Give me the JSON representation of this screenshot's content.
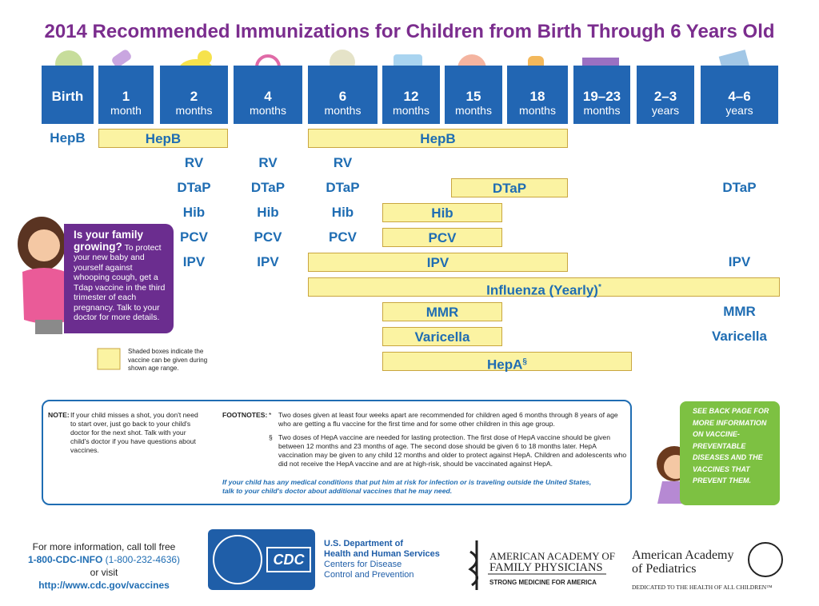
{
  "title": "2014 Recommended Immunizations for Children from Birth Through 6 Years Old",
  "ages": [
    {
      "top": "Birth"
    },
    {
      "top": "1",
      "bottom": "month"
    },
    {
      "top": "2",
      "bottom": "months"
    },
    {
      "top": "4",
      "bottom": "months"
    },
    {
      "top": "6",
      "bottom": "months"
    },
    {
      "top": "12",
      "bottom": "months"
    },
    {
      "top": "15",
      "bottom": "months"
    },
    {
      "top": "18",
      "bottom": "months"
    },
    {
      "top": "19–23",
      "bottom": "months"
    },
    {
      "top": "2–3",
      "bottom": "years"
    },
    {
      "top": "4–6",
      "bottom": "years"
    }
  ],
  "vaccines": [
    [
      {
        "label": "HepB"
      },
      {
        "label": "HepB",
        "shaded": true
      },
      {
        "label": "HepB",
        "shaded": true
      }
    ],
    [
      {
        "label": "RV"
      },
      {
        "label": "RV"
      },
      {
        "label": "RV"
      }
    ],
    [
      {
        "label": "DTaP"
      },
      {
        "label": "DTaP"
      },
      {
        "label": "DTaP"
      },
      {
        "label": "DTaP",
        "shaded": true
      },
      {
        "label": "DTaP"
      }
    ],
    [
      {
        "label": "Hib"
      },
      {
        "label": "Hib"
      },
      {
        "label": "Hib"
      },
      {
        "label": "Hib",
        "shaded": true
      }
    ],
    [
      {
        "label": "PCV"
      },
      {
        "label": "PCV"
      },
      {
        "label": "PCV"
      },
      {
        "label": "PCV",
        "shaded": true
      }
    ],
    [
      {
        "label": "IPV"
      },
      {
        "label": "IPV"
      },
      {
        "label": "IPV",
        "shaded": true
      },
      {
        "label": "IPV"
      }
    ],
    [
      {
        "label": "Influenza (Yearly)",
        "mark": "*",
        "shaded": true
      }
    ],
    [
      {
        "label": "MMR",
        "shaded": true
      },
      {
        "label": "MMR"
      }
    ],
    [
      {
        "label": "Varicella",
        "shaded": true
      },
      {
        "label": "Varicella"
      }
    ],
    [
      {
        "label": "HepA",
        "mark": "§",
        "shaded": true
      }
    ]
  ],
  "callout": {
    "heading": "Is your family growing?",
    "text": "To protect your new baby and yourself against whooping cough, get a Tdap vaccine in the third trimester of each pregnancy. Talk to your doctor for more details."
  },
  "legend": "Shaded boxes indicate the vaccine can be given during shown age range.",
  "note": {
    "label": "NOTE:",
    "text": "If your child misses a shot, you don't need to start over, just go back to your child's doctor for the next shot. Talk with your child's doctor if you have questions about vaccines."
  },
  "footnotes": {
    "label": "FOOTNOTES:",
    "items": [
      {
        "symbol": "*",
        "text": "Two doses given at least four weeks apart are recommended for children aged 6 months through 8 years of age who are getting a flu vaccine for the first time and for some other children in this age group."
      },
      {
        "symbol": "§",
        "text": "Two doses of HepA vaccine are needed for lasting protection. The first dose of HepA vaccine should be given between 12 months and 23 months of age. The second dose should be given 6 to 18 months later. HepA vaccination may be given to any child 12 months and older to protect against HepA. Children and adolescents who did not receive the HepA vaccine and are at high-risk, should be vaccinated against HepA."
      }
    ],
    "closing": "If your child has any medical conditions that put him at risk for infection or is traveling outside the United States, talk to your child's doctor about additional vaccines that he may need."
  },
  "back_page": "SEE BACK PAGE FOR MORE INFORMATION ON VACCINE-PREVENTABLE DISEASES AND THE VACCINES THAT PREVENT THEM.",
  "contact": {
    "line1": "For more information, call toll free",
    "phone": "1-800-CDC-INFO",
    "phone_alt": "(1-800-232-4636)",
    "or": "or visit",
    "url": "http://www.cdc.gov/vaccines"
  },
  "hhs": {
    "logo": "CDC",
    "line1": "U.S. Department of",
    "line2": "Health and Human Services",
    "line3": "Centers for Disease",
    "line4": "Control and Prevention"
  },
  "aafp": {
    "name1": "AMERICAN ACADEMY OF",
    "name2": "FAMILY PHYSICIANS",
    "tagline": "STRONG MEDICINE FOR AMERICA"
  },
  "aap": {
    "name1": "American Academy",
    "name2": "of Pediatrics",
    "tagline": "DEDICATED TO THE HEALTH OF ALL CHILDREN™"
  }
}
